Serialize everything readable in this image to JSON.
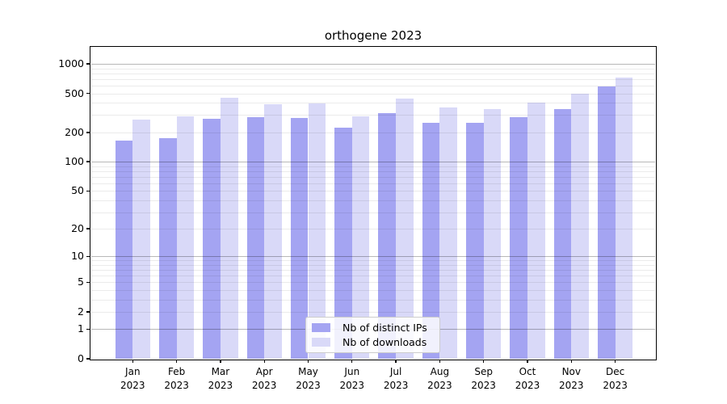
{
  "chart_data": {
    "type": "bar",
    "title": "orthogene 2023",
    "categories": [
      "Jan",
      "Feb",
      "Mar",
      "Apr",
      "May",
      "Jun",
      "Jul",
      "Aug",
      "Sep",
      "Oct",
      "Nov",
      "Dec"
    ],
    "year_label": "2023",
    "series": [
      {
        "name": "Nb of distinct IPs",
        "color": "#a4a4f2",
        "values": [
          165,
          176,
          277,
          284,
          278,
          225,
          314,
          252,
          250,
          288,
          348,
          592
        ]
      },
      {
        "name": "Nb of downloads",
        "color": "#d9d9f8",
        "values": [
          270,
          291,
          448,
          390,
          395,
          290,
          440,
          360,
          344,
          405,
          495,
          730
        ]
      }
    ],
    "yscale": "log1p",
    "yticks": [
      0,
      1,
      2,
      5,
      10,
      20,
      50,
      100,
      200,
      500,
      1000
    ],
    "ylim": [
      0,
      1460
    ],
    "xlabel": "",
    "ylabel": "",
    "grid": true,
    "legend_position": "lower center"
  }
}
